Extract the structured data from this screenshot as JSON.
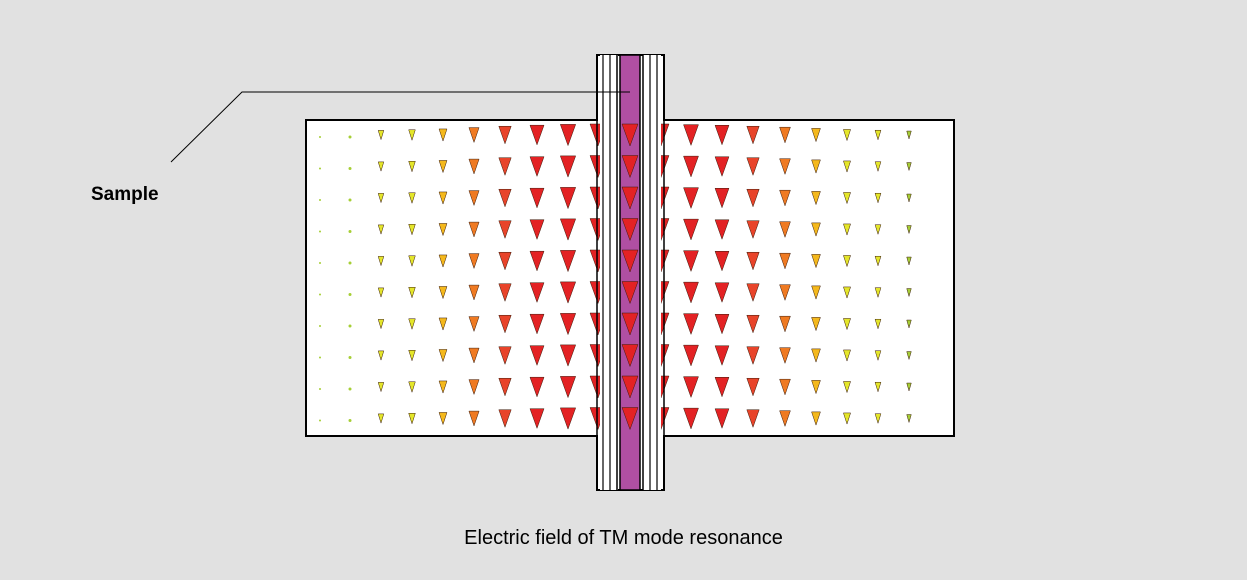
{
  "labels": {
    "sample": "Sample",
    "caption": "Electric field of TM mode resonance"
  },
  "colors": {
    "background": "#e1e1e1",
    "cavity_fill": "#ffffff",
    "outline": "#000000",
    "sample_tube": "#b04fa2",
    "field_scale": [
      "#a6cf35",
      "#e4e62a",
      "#f4b81c",
      "#ef7a22",
      "#e8442a",
      "#e32224"
    ]
  },
  "field_pattern": {
    "columns": 20,
    "rows": 10,
    "direction": "down",
    "relative_magnitude_by_column": [
      0.05,
      0.08,
      0.2,
      0.28,
      0.38,
      0.55,
      0.72,
      0.85,
      0.95,
      1.0,
      1.0,
      1.0,
      0.92,
      0.84,
      0.72,
      0.6,
      0.45,
      0.32,
      0.22,
      0.12
    ]
  }
}
